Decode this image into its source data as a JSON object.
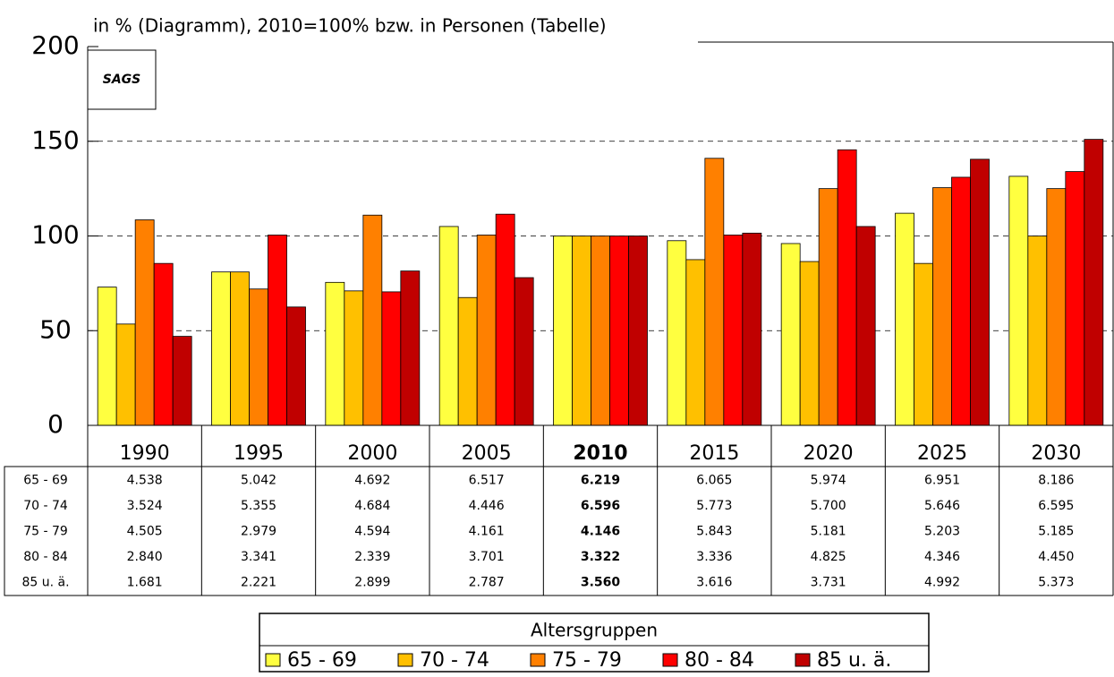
{
  "chart_data": {
    "type": "bar",
    "subtitle": "in % (Diagramm), 2010=100% bzw. in Personen (Tabelle)",
    "logo": "SAGS",
    "categories": [
      "1990",
      "1995",
      "2000",
      "2005",
      "2010",
      "2015",
      "2020",
      "2025",
      "2030"
    ],
    "highlight": "2010",
    "series": [
      {
        "name": "65 - 69",
        "color": "#ffff40",
        "values": [
          73,
          81,
          75.5,
          105,
          100,
          97.5,
          96,
          112,
          131.5
        ]
      },
      {
        "name": "70 - 74",
        "color": "#ffc000",
        "values": [
          53.5,
          81,
          71,
          67.5,
          100,
          87.5,
          86.5,
          85.5,
          100
        ]
      },
      {
        "name": "75 - 79",
        "color": "#ff8000",
        "values": [
          108.5,
          72,
          111,
          100.5,
          100,
          141,
          125,
          125.5,
          125
        ]
      },
      {
        "name": "80 - 84",
        "color": "#ff0000",
        "values": [
          85.5,
          100.5,
          70.5,
          111.5,
          100,
          100.5,
          145.5,
          131,
          134
        ]
      },
      {
        "name": "85 u. ä.",
        "color": "#c00000",
        "values": [
          47,
          62.5,
          81.5,
          78,
          100,
          101.5,
          105,
          140.5,
          151
        ]
      }
    ],
    "ylim": [
      0,
      200
    ],
    "yticks": [
      0,
      50,
      100,
      150,
      200
    ],
    "grid": true,
    "table": {
      "rows": [
        [
          "4.538",
          "5.042",
          "4.692",
          "6.517",
          "6.219",
          "6.065",
          "5.974",
          "6.951",
          "8.186"
        ],
        [
          "3.524",
          "5.355",
          "4.684",
          "4.446",
          "6.596",
          "5.773",
          "5.700",
          "5.646",
          "6.595"
        ],
        [
          "4.505",
          "2.979",
          "4.594",
          "4.161",
          "4.146",
          "5.843",
          "5.181",
          "5.203",
          "5.185"
        ],
        [
          "2.840",
          "3.341",
          "2.339",
          "3.701",
          "3.322",
          "3.336",
          "4.825",
          "4.346",
          "4.450"
        ],
        [
          "1.681",
          "2.221",
          "2.899",
          "2.787",
          "3.560",
          "3.616",
          "3.731",
          "4.992",
          "5.373"
        ]
      ]
    },
    "legend_title": "Altersgruppen"
  }
}
